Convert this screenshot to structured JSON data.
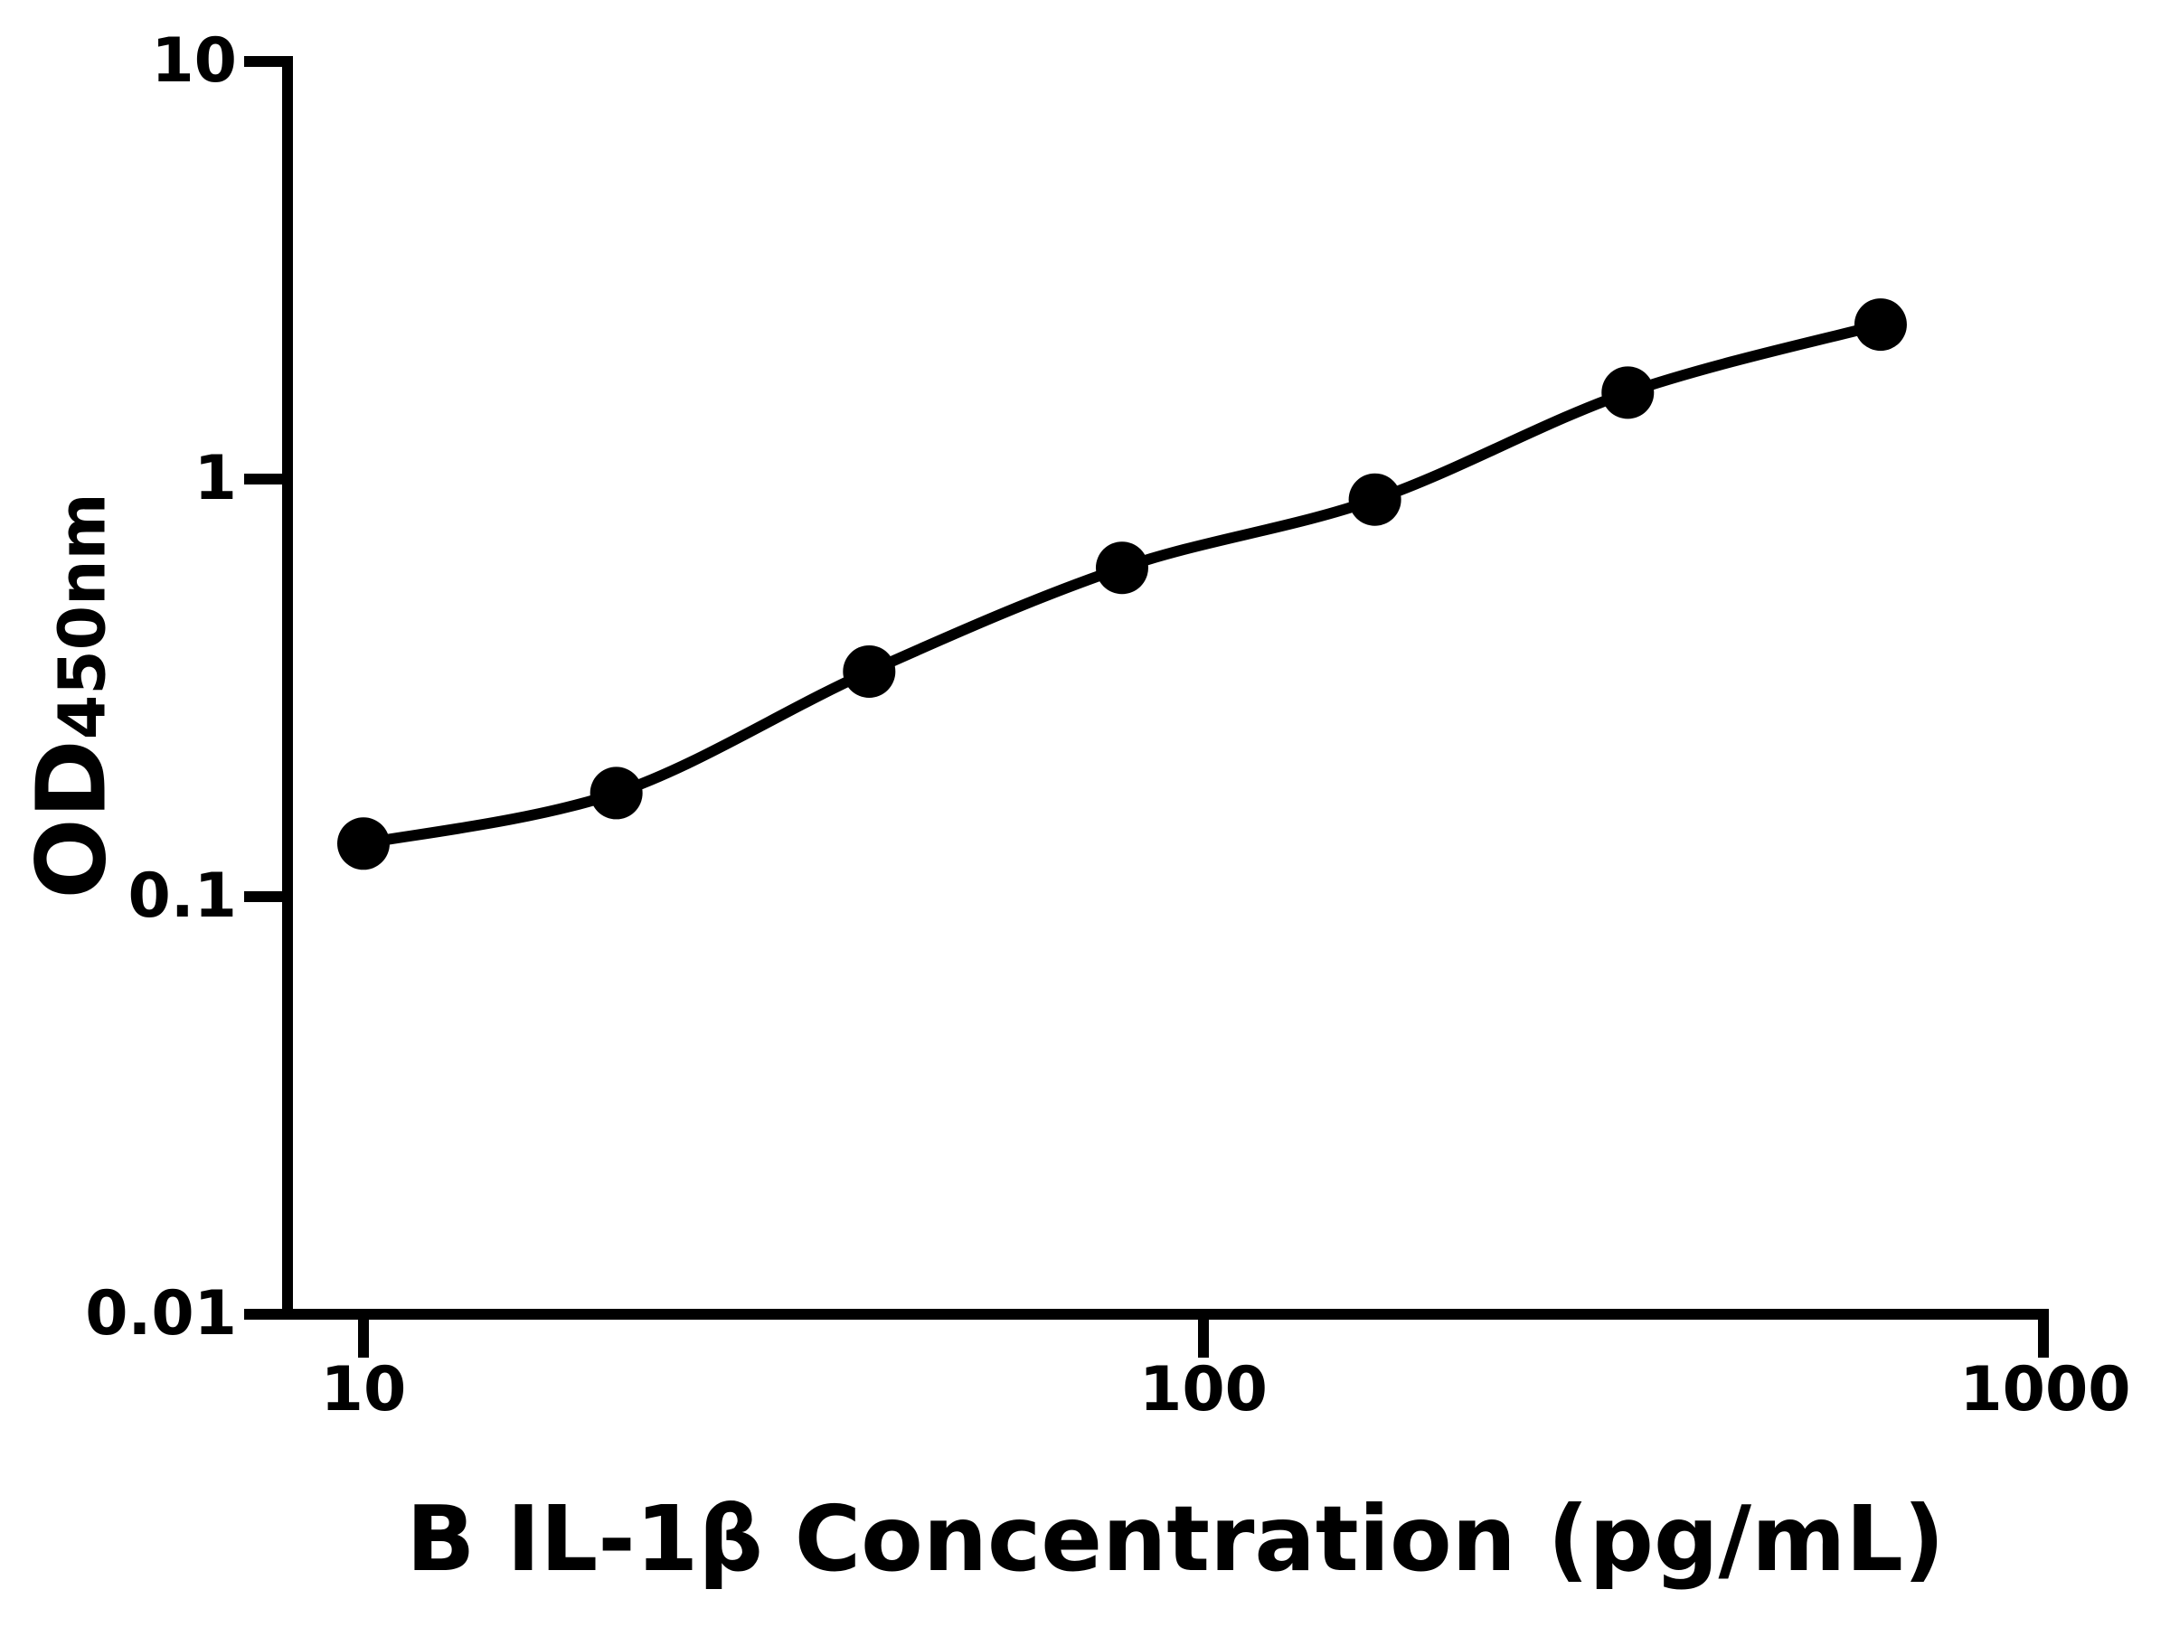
{
  "chart_data": {
    "type": "scatter",
    "curve": "smooth fit line through points",
    "title": "",
    "xlabel": "B IL-1β Concentration (pg/mL)",
    "ylabel_main": "OD",
    "ylabel_sub": "450nm",
    "x": [
      10,
      20,
      40,
      80,
      160,
      320,
      640
    ],
    "y": [
      0.134,
      0.177,
      0.346,
      0.613,
      0.893,
      1.611,
      2.344
    ],
    "x_scale": "log10",
    "y_scale": "log10",
    "xlim": [
      8.1,
      1000
    ],
    "ylim": [
      0.01,
      10
    ],
    "x_ticks": [
      10,
      100,
      1000
    ],
    "x_tick_labels": [
      "10",
      "100",
      "1000"
    ],
    "y_ticks": [
      10,
      1,
      0.1,
      0.01
    ],
    "y_tick_labels": [
      "10",
      "1",
      "0.1",
      "0.01"
    ],
    "marker": "filled-circle",
    "marker_color": "#000000",
    "line_color": "#000000",
    "background_color": "#ffffff",
    "grid": false,
    "legend": "none"
  }
}
